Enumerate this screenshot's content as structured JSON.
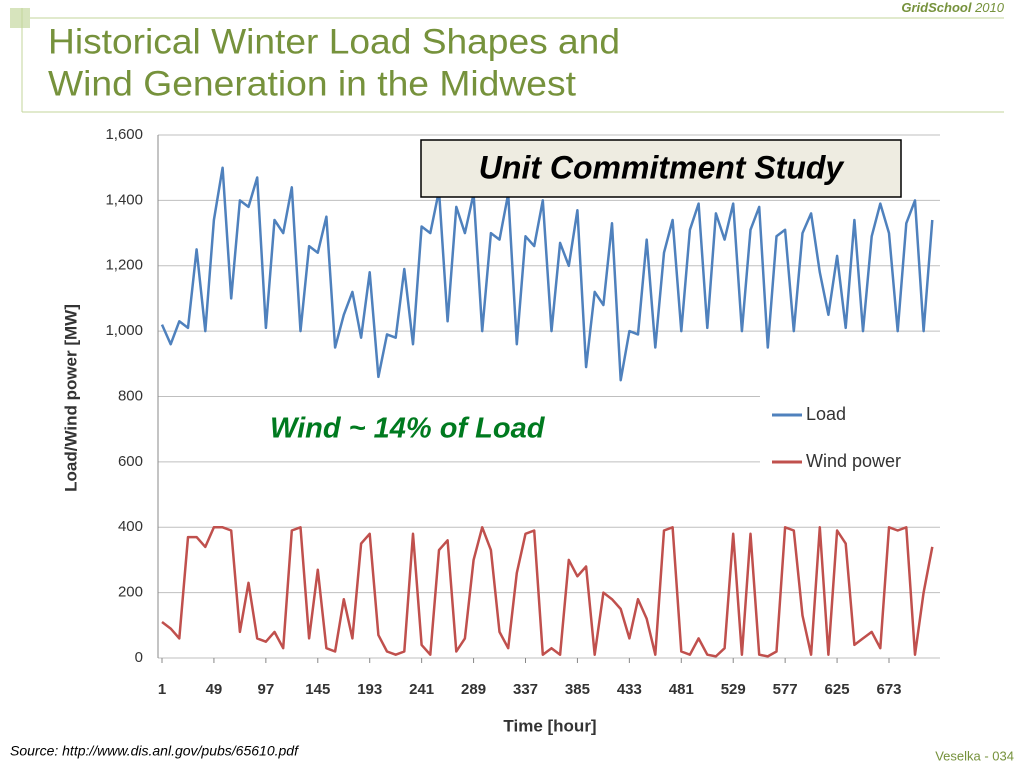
{
  "header": {
    "title_line1": "Historical Winter Load Shapes and",
    "title_line2": "Wind Generation in the Midwest",
    "brand": "GridSchool",
    "year": "2010"
  },
  "footer": {
    "source": "Source: http://www.dis.anl.gov/pubs/65610.pdf",
    "page": "Veselka  - 034"
  },
  "chart_data": {
    "type": "line",
    "annotations": [
      "Unit Commitment Study",
      "Wind ~ 14% of Load"
    ],
    "xlabel": "Time [hour]",
    "ylabel": "Load/Wind power [MW]",
    "x": [
      1,
      9,
      17,
      25,
      33,
      41,
      49,
      57,
      65,
      73,
      81,
      89,
      97,
      105,
      113,
      121,
      129,
      137,
      145,
      153,
      161,
      169,
      177,
      185,
      193,
      201,
      209,
      217,
      225,
      233,
      241,
      249,
      257,
      265,
      273,
      281,
      289,
      297,
      305,
      313,
      321,
      329,
      337,
      345,
      353,
      361,
      369,
      377,
      385,
      393,
      401,
      409,
      417,
      425,
      433,
      441,
      449,
      457,
      465,
      473,
      481,
      489,
      497,
      505,
      513,
      521,
      529,
      537,
      545,
      553,
      561,
      569,
      577,
      585,
      593,
      601,
      609,
      617,
      625,
      633,
      641,
      649,
      657,
      665,
      673,
      681,
      689,
      697,
      705,
      713
    ],
    "series": [
      {
        "name": "Load",
        "color": "#4f81bd",
        "values": [
          1020,
          960,
          1030,
          1010,
          1250,
          1000,
          1340,
          1500,
          1100,
          1400,
          1380,
          1470,
          1010,
          1340,
          1300,
          1440,
          1000,
          1260,
          1240,
          1350,
          950,
          1050,
          1120,
          980,
          1180,
          860,
          990,
          980,
          1190,
          960,
          1320,
          1300,
          1430,
          1030,
          1380,
          1300,
          1420,
          1000,
          1300,
          1280,
          1420,
          960,
          1290,
          1260,
          1400,
          1000,
          1270,
          1200,
          1370,
          890,
          1120,
          1080,
          1330,
          850,
          1000,
          990,
          1280,
          950,
          1240,
          1340,
          1000,
          1310,
          1390,
          1010,
          1360,
          1280,
          1390,
          1000,
          1310,
          1380,
          950,
          1290,
          1310,
          1000,
          1300,
          1360,
          1180,
          1050,
          1230,
          1010,
          1340,
          1000,
          1290,
          1390,
          1300,
          1000,
          1330,
          1400,
          1000,
          1340
        ]
      },
      {
        "name": "Wind power",
        "color": "#c0504d",
        "values": [
          110,
          90,
          60,
          370,
          370,
          340,
          400,
          400,
          390,
          80,
          230,
          60,
          50,
          80,
          30,
          390,
          400,
          60,
          270,
          30,
          20,
          180,
          60,
          350,
          380,
          70,
          20,
          10,
          20,
          380,
          40,
          10,
          330,
          360,
          20,
          60,
          300,
          400,
          330,
          80,
          30,
          260,
          380,
          390,
          10,
          30,
          10,
          300,
          250,
          280,
          10,
          200,
          180,
          150,
          60,
          180,
          120,
          10,
          390,
          400,
          20,
          10,
          60,
          10,
          5,
          30,
          380,
          10,
          380,
          10,
          5,
          20,
          400,
          390,
          130,
          10,
          400,
          10,
          390,
          350,
          40,
          60,
          80,
          30,
          400,
          390,
          400,
          10,
          200,
          340
        ]
      }
    ],
    "xlim": [
      1,
      720
    ],
    "xticks": [
      1,
      49,
      97,
      145,
      193,
      241,
      289,
      337,
      385,
      433,
      481,
      529,
      577,
      625,
      673
    ],
    "ylim": [
      0,
      1600
    ],
    "yticks": [
      0,
      200,
      400,
      600,
      800,
      {
        "value": 1000,
        "label": "1,000"
      },
      {
        "value": 1200,
        "label": "1,200"
      },
      {
        "value": 1400,
        "label": "1,400"
      },
      {
        "value": 1600,
        "label": "1,600"
      }
    ],
    "grid": true,
    "legend": "right"
  }
}
